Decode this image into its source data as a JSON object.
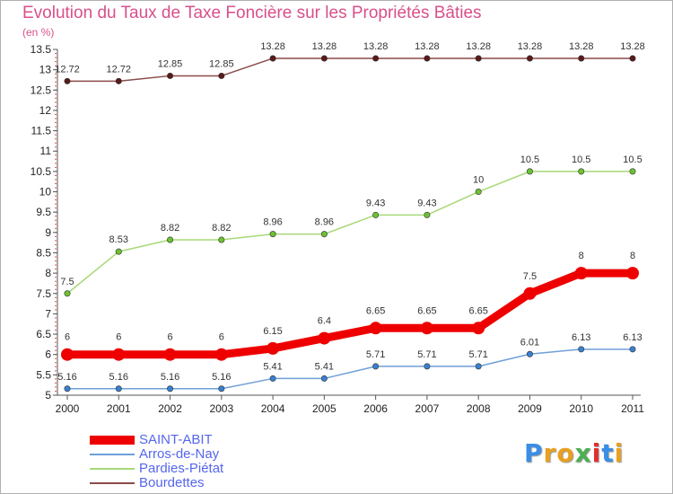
{
  "chart_data": {
    "type": "line",
    "title": "Evolution du Taux de Taxe Foncière sur les Propriétés Bâties",
    "unit_label": "(en %)",
    "x": [
      "2000",
      "2001",
      "2002",
      "2003",
      "2004",
      "2005",
      "2006",
      "2007",
      "2008",
      "2009",
      "2010",
      "2011"
    ],
    "yticks": [
      "5",
      "5.5",
      "6",
      "6.5",
      "7",
      "7.5",
      "8",
      "8.5",
      "9",
      "9.5",
      "10",
      "10.5",
      "11",
      "11.5",
      "12",
      "12.5",
      "13",
      "13.5"
    ],
    "ylim": [
      5,
      13.5
    ],
    "grid": false,
    "legend_position": "bottom-left",
    "series": [
      {
        "name": "SAINT-ABIT",
        "color": "#ee0000",
        "point_color": "#ee0000",
        "emphasis": true,
        "values": [
          6,
          6,
          6,
          6,
          6.15,
          6.4,
          6.65,
          6.65,
          6.65,
          7.5,
          8,
          8
        ],
        "labels": [
          "6",
          "6",
          "6",
          "6",
          "6.15",
          "6.4",
          "6.65",
          "6.65",
          "6.65",
          "7.5",
          "8",
          "8"
        ]
      },
      {
        "name": "Arros-de-Nay",
        "color": "#6f9fd8",
        "point_color": "#3a7fd0",
        "emphasis": false,
        "values": [
          5.16,
          5.16,
          5.16,
          5.16,
          5.41,
          5.41,
          5.71,
          5.71,
          5.71,
          6.01,
          6.13,
          6.13
        ],
        "labels": [
          "5.16",
          "5.16",
          "5.16",
          "5.16",
          "5.41",
          "5.41",
          "5.71",
          "5.71",
          "5.71",
          "6.01",
          "6.13",
          "6.13"
        ]
      },
      {
        "name": "Pardies-Piétat",
        "color": "#a8d878",
        "point_color": "#6cc232",
        "emphasis": false,
        "values": [
          7.5,
          8.53,
          8.82,
          8.82,
          8.96,
          8.96,
          9.43,
          9.43,
          10,
          10.5,
          10.5,
          10.5
        ],
        "labels": [
          "7.5",
          "8.53",
          "8.82",
          "8.82",
          "8.96",
          "8.96",
          "9.43",
          "9.43",
          "10",
          "10.5",
          "10.5",
          "10.5"
        ]
      },
      {
        "name": "Bourdettes",
        "color": "#8b4a4a",
        "point_color": "#5a1a1a",
        "emphasis": false,
        "values": [
          12.72,
          12.72,
          12.85,
          12.85,
          13.28,
          13.28,
          13.28,
          13.28,
          13.28,
          13.28,
          13.28,
          13.28
        ],
        "labels": [
          "12.72",
          "12.72",
          "12.85",
          "12.85",
          "13.28",
          "13.28",
          "13.28",
          "13.28",
          "13.28",
          "13.28",
          "13.28",
          "13.28"
        ]
      }
    ]
  },
  "brand": {
    "letters": [
      "P",
      "r",
      "o",
      "x",
      "i",
      "t",
      "i"
    ],
    "colors": [
      "#3a8ee6",
      "#e8a020",
      "#e8a020",
      "#4caf50",
      "#e03030",
      "#3a8ee6",
      "#e8a020"
    ]
  }
}
